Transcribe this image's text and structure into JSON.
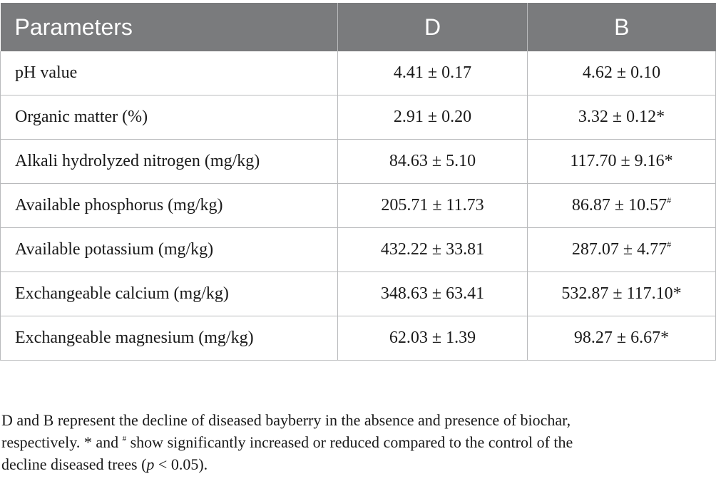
{
  "table": {
    "headers": [
      "Parameters",
      "D",
      "B"
    ],
    "rows": [
      {
        "parameter": "pH value",
        "d": "4.41 ± 0.17",
        "b": "4.62 ± 0.10",
        "b_mark": ""
      },
      {
        "parameter": "Organic matter (%)",
        "d": "2.91 ± 0.20",
        "b": "3.32 ± 0.12*",
        "b_mark": ""
      },
      {
        "parameter": "Alkali hydrolyzed nitrogen (mg/kg)",
        "d": "84.63 ± 5.10",
        "b": "117.70 ± 9.16*",
        "b_mark": ""
      },
      {
        "parameter": "Available phosphorus (mg/kg)",
        "d": "205.71 ± 11.73",
        "b": "86.87 ± 10.57",
        "b_mark": "#"
      },
      {
        "parameter": "Available potassium (mg/kg)",
        "d": "432.22 ± 33.81",
        "b": "287.07 ± 4.77",
        "b_mark": "#"
      },
      {
        "parameter": "Exchangeable calcium (mg/kg)",
        "d": "348.63 ± 63.41",
        "b": "532.87 ± 117.10*",
        "b_mark": ""
      },
      {
        "parameter": "Exchangeable magnesium (mg/kg)",
        "d": "62.03 ± 1.39",
        "b": "98.27 ± 6.67*",
        "b_mark": ""
      }
    ]
  },
  "footnote": {
    "line1": "D and B represent the decline of diseased bayberry in the absence and presence of biochar,",
    "line2_a": "respectively. * and ",
    "line2_mark": "#",
    "line2_b": " show significantly increased or reduced compared to the control of the",
    "line3_a": "decline diseased trees (",
    "line3_p": "p",
    "line3_b": " < 0.05)."
  },
  "colors": {
    "header_bg": "#7a7b7d",
    "header_text": "#ffffff",
    "grid": "#b9babc"
  }
}
